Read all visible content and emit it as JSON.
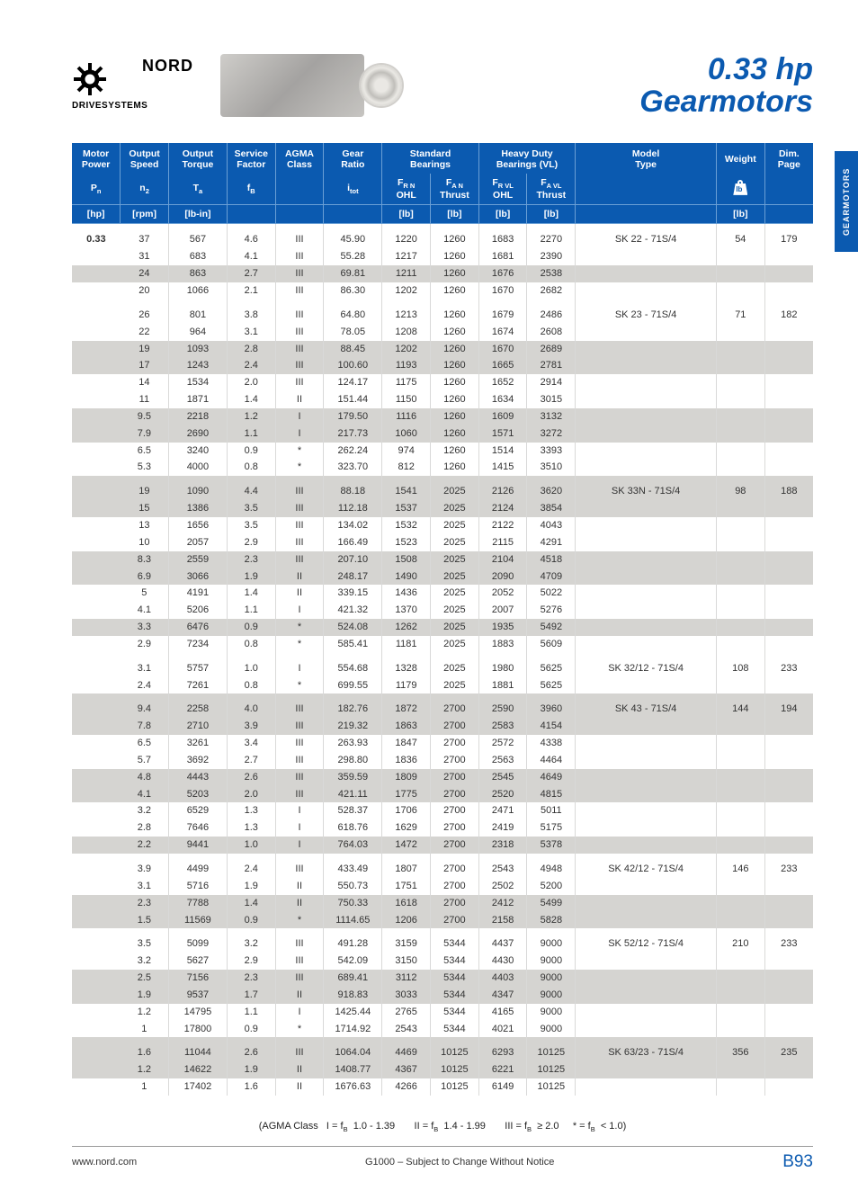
{
  "brand": {
    "name": "NORD",
    "subtitle": "DRIVESYSTEMS"
  },
  "title": {
    "line1": "0.33 hp",
    "line2": "Gearmotors"
  },
  "side_tab": "GEARMOTORS",
  "columns": {
    "c1a": "Motor",
    "c1b": "Power",
    "c1s": "P",
    "c1sub": "n",
    "c1u": "[hp]",
    "c2a": "Output",
    "c2b": "Speed",
    "c2s": "n",
    "c2sub": "2",
    "c2u": "[rpm]",
    "c3a": "Output",
    "c3b": "Torque",
    "c3s": "T",
    "c3sub": "a",
    "c3u": "[lb-in]",
    "c4a": "Service",
    "c4b": "Factor",
    "c4s": "f",
    "c4sub": "B",
    "c5a": "AGMA",
    "c5b": "Class",
    "c6a": "Gear",
    "c6b": "Ratio",
    "c6s": "i",
    "c6sub": "tot",
    "c7": "Standard",
    "c7b": "Bearings",
    "c7_1s": "F",
    "c7_1sub": "R N",
    "c7_1t": "OHL",
    "c7_1u": "[lb]",
    "c7_2s": "F",
    "c7_2sub": "A N",
    "c7_2t": "Thrust",
    "c7_2u": "[lb]",
    "c8": "Heavy Duty",
    "c8b": "Bearings (VL)",
    "c8_1s": "F",
    "c8_1sub": "R VL",
    "c8_1t": "OHL",
    "c8_1u": "[lb]",
    "c8_2s": "F",
    "c8_2sub": "A VL",
    "c8_2t": "Thrust",
    "c8_2u": "[lb]",
    "c9a": "Model",
    "c9b": "Type",
    "c10": "Weight",
    "c10u": "[lb]",
    "c11a": "Dim.",
    "c11b": "Page"
  },
  "power": "0.33",
  "groups": [
    {
      "model": "SK 22 - 71S/4",
      "weight": "54",
      "page": "179",
      "rows": [
        {
          "n2": "37",
          "ta": "567",
          "fb": "4.6",
          "cls": "III",
          "i": "45.90",
          "frn": "1220",
          "fan": "1260",
          "frvl": "1683",
          "favl": "2270",
          "sh": false
        },
        {
          "n2": "31",
          "ta": "683",
          "fb": "4.1",
          "cls": "III",
          "i": "55.28",
          "frn": "1217",
          "fan": "1260",
          "frvl": "1681",
          "favl": "2390",
          "sh": false
        },
        {
          "n2": "24",
          "ta": "863",
          "fb": "2.7",
          "cls": "III",
          "i": "69.81",
          "frn": "1211",
          "fan": "1260",
          "frvl": "1676",
          "favl": "2538",
          "sh": true
        },
        {
          "n2": "20",
          "ta": "1066",
          "fb": "2.1",
          "cls": "III",
          "i": "86.30",
          "frn": "1202",
          "fan": "1260",
          "frvl": "1670",
          "favl": "2682",
          "sh": false
        }
      ]
    },
    {
      "model": "SK 23 - 71S/4",
      "weight": "71",
      "page": "182",
      "rows": [
        {
          "n2": "26",
          "ta": "801",
          "fb": "3.8",
          "cls": "III",
          "i": "64.80",
          "frn": "1213",
          "fan": "1260",
          "frvl": "1679",
          "favl": "2486",
          "sh": false
        },
        {
          "n2": "22",
          "ta": "964",
          "fb": "3.1",
          "cls": "III",
          "i": "78.05",
          "frn": "1208",
          "fan": "1260",
          "frvl": "1674",
          "favl": "2608",
          "sh": false
        },
        {
          "n2": "19",
          "ta": "1093",
          "fb": "2.8",
          "cls": "III",
          "i": "88.45",
          "frn": "1202",
          "fan": "1260",
          "frvl": "1670",
          "favl": "2689",
          "sh": true
        },
        {
          "n2": "17",
          "ta": "1243",
          "fb": "2.4",
          "cls": "III",
          "i": "100.60",
          "frn": "1193",
          "fan": "1260",
          "frvl": "1665",
          "favl": "2781",
          "sh": true
        },
        {
          "n2": "14",
          "ta": "1534",
          "fb": "2.0",
          "cls": "III",
          "i": "124.17",
          "frn": "1175",
          "fan": "1260",
          "frvl": "1652",
          "favl": "2914",
          "sh": false
        },
        {
          "n2": "11",
          "ta": "1871",
          "fb": "1.4",
          "cls": "II",
          "i": "151.44",
          "frn": "1150",
          "fan": "1260",
          "frvl": "1634",
          "favl": "3015",
          "sh": false
        },
        {
          "n2": "9.5",
          "ta": "2218",
          "fb": "1.2",
          "cls": "I",
          "i": "179.50",
          "frn": "1116",
          "fan": "1260",
          "frvl": "1609",
          "favl": "3132",
          "sh": true
        },
        {
          "n2": "7.9",
          "ta": "2690",
          "fb": "1.1",
          "cls": "I",
          "i": "217.73",
          "frn": "1060",
          "fan": "1260",
          "frvl": "1571",
          "favl": "3272",
          "sh": true
        },
        {
          "n2": "6.5",
          "ta": "3240",
          "fb": "0.9",
          "cls": "*",
          "i": "262.24",
          "frn": "974",
          "fan": "1260",
          "frvl": "1514",
          "favl": "3393",
          "sh": false
        },
        {
          "n2": "5.3",
          "ta": "4000",
          "fb": "0.8",
          "cls": "*",
          "i": "323.70",
          "frn": "812",
          "fan": "1260",
          "frvl": "1415",
          "favl": "3510",
          "sh": false
        }
      ]
    },
    {
      "model": "SK 33N - 71S/4",
      "weight": "98",
      "page": "188",
      "rows": [
        {
          "n2": "19",
          "ta": "1090",
          "fb": "4.4",
          "cls": "III",
          "i": "88.18",
          "frn": "1541",
          "fan": "2025",
          "frvl": "2126",
          "favl": "3620",
          "sh": true
        },
        {
          "n2": "15",
          "ta": "1386",
          "fb": "3.5",
          "cls": "III",
          "i": "112.18",
          "frn": "1537",
          "fan": "2025",
          "frvl": "2124",
          "favl": "3854",
          "sh": true
        },
        {
          "n2": "13",
          "ta": "1656",
          "fb": "3.5",
          "cls": "III",
          "i": "134.02",
          "frn": "1532",
          "fan": "2025",
          "frvl": "2122",
          "favl": "4043",
          "sh": false
        },
        {
          "n2": "10",
          "ta": "2057",
          "fb": "2.9",
          "cls": "III",
          "i": "166.49",
          "frn": "1523",
          "fan": "2025",
          "frvl": "2115",
          "favl": "4291",
          "sh": false
        },
        {
          "n2": "8.3",
          "ta": "2559",
          "fb": "2.3",
          "cls": "III",
          "i": "207.10",
          "frn": "1508",
          "fan": "2025",
          "frvl": "2104",
          "favl": "4518",
          "sh": true
        },
        {
          "n2": "6.9",
          "ta": "3066",
          "fb": "1.9",
          "cls": "II",
          "i": "248.17",
          "frn": "1490",
          "fan": "2025",
          "frvl": "2090",
          "favl": "4709",
          "sh": true
        },
        {
          "n2": "5",
          "ta": "4191",
          "fb": "1.4",
          "cls": "II",
          "i": "339.15",
          "frn": "1436",
          "fan": "2025",
          "frvl": "2052",
          "favl": "5022",
          "sh": false
        },
        {
          "n2": "4.1",
          "ta": "5206",
          "fb": "1.1",
          "cls": "I",
          "i": "421.32",
          "frn": "1370",
          "fan": "2025",
          "frvl": "2007",
          "favl": "5276",
          "sh": false
        },
        {
          "n2": "3.3",
          "ta": "6476",
          "fb": "0.9",
          "cls": "*",
          "i": "524.08",
          "frn": "1262",
          "fan": "2025",
          "frvl": "1935",
          "favl": "5492",
          "sh": true
        },
        {
          "n2": "2.9",
          "ta": "7234",
          "fb": "0.8",
          "cls": "*",
          "i": "585.41",
          "frn": "1181",
          "fan": "2025",
          "frvl": "1883",
          "favl": "5609",
          "sh": false
        }
      ]
    },
    {
      "model": "SK 32/12 - 71S/4",
      "weight": "108",
      "page": "233",
      "rows": [
        {
          "n2": "3.1",
          "ta": "5757",
          "fb": "1.0",
          "cls": "I",
          "i": "554.68",
          "frn": "1328",
          "fan": "2025",
          "frvl": "1980",
          "favl": "5625",
          "sh": false
        },
        {
          "n2": "2.4",
          "ta": "7261",
          "fb": "0.8",
          "cls": "*",
          "i": "699.55",
          "frn": "1179",
          "fan": "2025",
          "frvl": "1881",
          "favl": "5625",
          "sh": false
        }
      ]
    },
    {
      "model": "SK 43 - 71S/4",
      "weight": "144",
      "page": "194",
      "rows": [
        {
          "n2": "9.4",
          "ta": "2258",
          "fb": "4.0",
          "cls": "III",
          "i": "182.76",
          "frn": "1872",
          "fan": "2700",
          "frvl": "2590",
          "favl": "3960",
          "sh": true
        },
        {
          "n2": "7.8",
          "ta": "2710",
          "fb": "3.9",
          "cls": "III",
          "i": "219.32",
          "frn": "1863",
          "fan": "2700",
          "frvl": "2583",
          "favl": "4154",
          "sh": true
        },
        {
          "n2": "6.5",
          "ta": "3261",
          "fb": "3.4",
          "cls": "III",
          "i": "263.93",
          "frn": "1847",
          "fan": "2700",
          "frvl": "2572",
          "favl": "4338",
          "sh": false
        },
        {
          "n2": "5.7",
          "ta": "3692",
          "fb": "2.7",
          "cls": "III",
          "i": "298.80",
          "frn": "1836",
          "fan": "2700",
          "frvl": "2563",
          "favl": "4464",
          "sh": false
        },
        {
          "n2": "4.8",
          "ta": "4443",
          "fb": "2.6",
          "cls": "III",
          "i": "359.59",
          "frn": "1809",
          "fan": "2700",
          "frvl": "2545",
          "favl": "4649",
          "sh": true
        },
        {
          "n2": "4.1",
          "ta": "5203",
          "fb": "2.0",
          "cls": "III",
          "i": "421.11",
          "frn": "1775",
          "fan": "2700",
          "frvl": "2520",
          "favl": "4815",
          "sh": true
        },
        {
          "n2": "3.2",
          "ta": "6529",
          "fb": "1.3",
          "cls": "I",
          "i": "528.37",
          "frn": "1706",
          "fan": "2700",
          "frvl": "2471",
          "favl": "5011",
          "sh": false
        },
        {
          "n2": "2.8",
          "ta": "7646",
          "fb": "1.3",
          "cls": "I",
          "i": "618.76",
          "frn": "1629",
          "fan": "2700",
          "frvl": "2419",
          "favl": "5175",
          "sh": false
        },
        {
          "n2": "2.2",
          "ta": "9441",
          "fb": "1.0",
          "cls": "I",
          "i": "764.03",
          "frn": "1472",
          "fan": "2700",
          "frvl": "2318",
          "favl": "5378",
          "sh": true
        }
      ]
    },
    {
      "model": "SK 42/12 - 71S/4",
      "weight": "146",
      "page": "233",
      "rows": [
        {
          "n2": "3.9",
          "ta": "4499",
          "fb": "2.4",
          "cls": "III",
          "i": "433.49",
          "frn": "1807",
          "fan": "2700",
          "frvl": "2543",
          "favl": "4948",
          "sh": false
        },
        {
          "n2": "3.1",
          "ta": "5716",
          "fb": "1.9",
          "cls": "II",
          "i": "550.73",
          "frn": "1751",
          "fan": "2700",
          "frvl": "2502",
          "favl": "5200",
          "sh": false
        },
        {
          "n2": "2.3",
          "ta": "7788",
          "fb": "1.4",
          "cls": "II",
          "i": "750.33",
          "frn": "1618",
          "fan": "2700",
          "frvl": "2412",
          "favl": "5499",
          "sh": true
        },
        {
          "n2": "1.5",
          "ta": "11569",
          "fb": "0.9",
          "cls": "*",
          "i": "1114.65",
          "frn": "1206",
          "fan": "2700",
          "frvl": "2158",
          "favl": "5828",
          "sh": true
        }
      ]
    },
    {
      "model": "SK 52/12 - 71S/4",
      "weight": "210",
      "page": "233",
      "rows": [
        {
          "n2": "3.5",
          "ta": "5099",
          "fb": "3.2",
          "cls": "III",
          "i": "491.28",
          "frn": "3159",
          "fan": "5344",
          "frvl": "4437",
          "favl": "9000",
          "sh": false
        },
        {
          "n2": "3.2",
          "ta": "5627",
          "fb": "2.9",
          "cls": "III",
          "i": "542.09",
          "frn": "3150",
          "fan": "5344",
          "frvl": "4430",
          "favl": "9000",
          "sh": false
        },
        {
          "n2": "2.5",
          "ta": "7156",
          "fb": "2.3",
          "cls": "III",
          "i": "689.41",
          "frn": "3112",
          "fan": "5344",
          "frvl": "4403",
          "favl": "9000",
          "sh": true
        },
        {
          "n2": "1.9",
          "ta": "9537",
          "fb": "1.7",
          "cls": "II",
          "i": "918.83",
          "frn": "3033",
          "fan": "5344",
          "frvl": "4347",
          "favl": "9000",
          "sh": true
        },
        {
          "n2": "1.2",
          "ta": "14795",
          "fb": "1.1",
          "cls": "I",
          "i": "1425.44",
          "frn": "2765",
          "fan": "5344",
          "frvl": "4165",
          "favl": "9000",
          "sh": false
        },
        {
          "n2": "1",
          "ta": "17800",
          "fb": "0.9",
          "cls": "*",
          "i": "1714.92",
          "frn": "2543",
          "fan": "5344",
          "frvl": "4021",
          "favl": "9000",
          "sh": false
        }
      ]
    },
    {
      "model": "SK 63/23 - 71S/4",
      "weight": "356",
      "page": "235",
      "rows": [
        {
          "n2": "1.6",
          "ta": "11044",
          "fb": "2.6",
          "cls": "III",
          "i": "1064.04",
          "frn": "4469",
          "fan": "10125",
          "frvl": "6293",
          "favl": "10125",
          "sh": true
        },
        {
          "n2": "1.2",
          "ta": "14622",
          "fb": "1.9",
          "cls": "II",
          "i": "1408.77",
          "frn": "4367",
          "fan": "10125",
          "frvl": "6221",
          "favl": "10125",
          "sh": true
        },
        {
          "n2": "1",
          "ta": "17402",
          "fb": "1.6",
          "cls": "II",
          "i": "1676.63",
          "frn": "4266",
          "fan": "10125",
          "frvl": "6149",
          "favl": "10125",
          "sh": false
        }
      ]
    }
  ],
  "agma_legend": "(AGMA Class   I = f_B  1.0 - 1.39       II = f_B  1.4 - 1.99       III = f_B  ≥ 2.0     * = f_B  < 1.0)",
  "footer": {
    "url": "www.nord.com",
    "notice": "G1000 – Subject to Change Without Notice",
    "page": "B93"
  },
  "colors": {
    "brand_blue": "#0b5ab0",
    "shade_gray": "#d5d4d1",
    "rule_gray": "#d9d9d8"
  }
}
